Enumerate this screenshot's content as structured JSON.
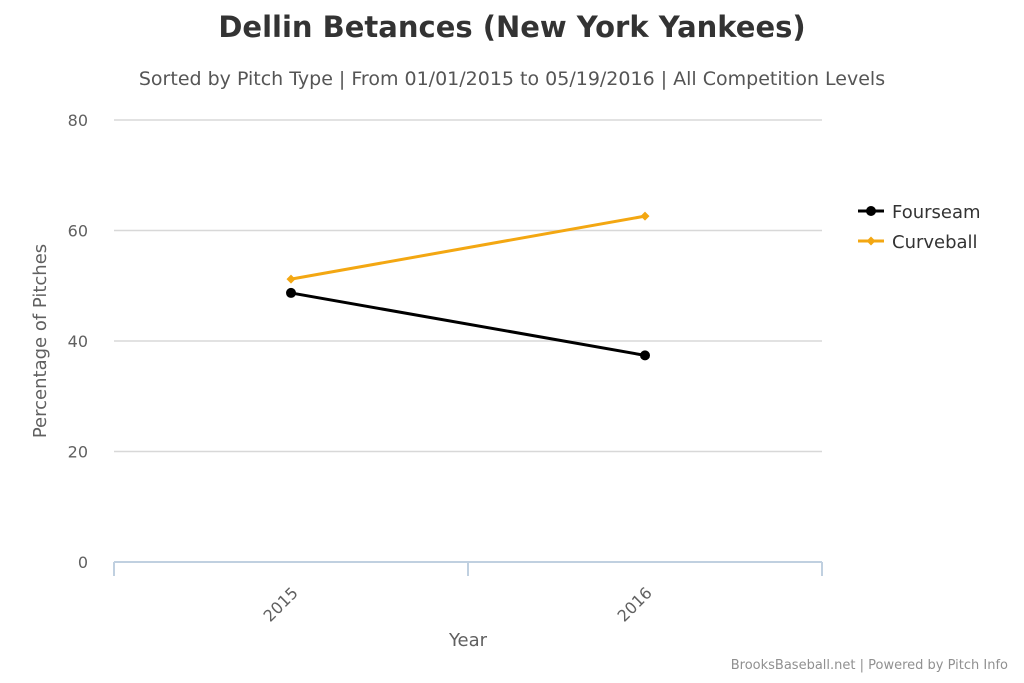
{
  "chart_data": {
    "type": "line",
    "title": "Dellin Betances (New York Yankees)",
    "subtitle": "Sorted by Pitch Type | From 01/01/2015 to 05/19/2016 | All Competition Levels",
    "xlabel": "Year",
    "ylabel": "Percentage of Pitches",
    "categories": [
      "2015",
      "2016"
    ],
    "yticks": [
      0,
      20,
      40,
      60,
      80
    ],
    "ylim": [
      0,
      80
    ],
    "grid": true,
    "legend_position": "right",
    "series": [
      {
        "name": "Fourseam",
        "values": [
          48.7,
          37.4
        ],
        "color": "#000000",
        "marker": "circle"
      },
      {
        "name": "Curveball",
        "values": [
          51.2,
          62.6
        ],
        "color": "#f3a712",
        "marker": "diamond"
      }
    ]
  },
  "credits": "BrooksBaseball.net | Powered by Pitch Info"
}
